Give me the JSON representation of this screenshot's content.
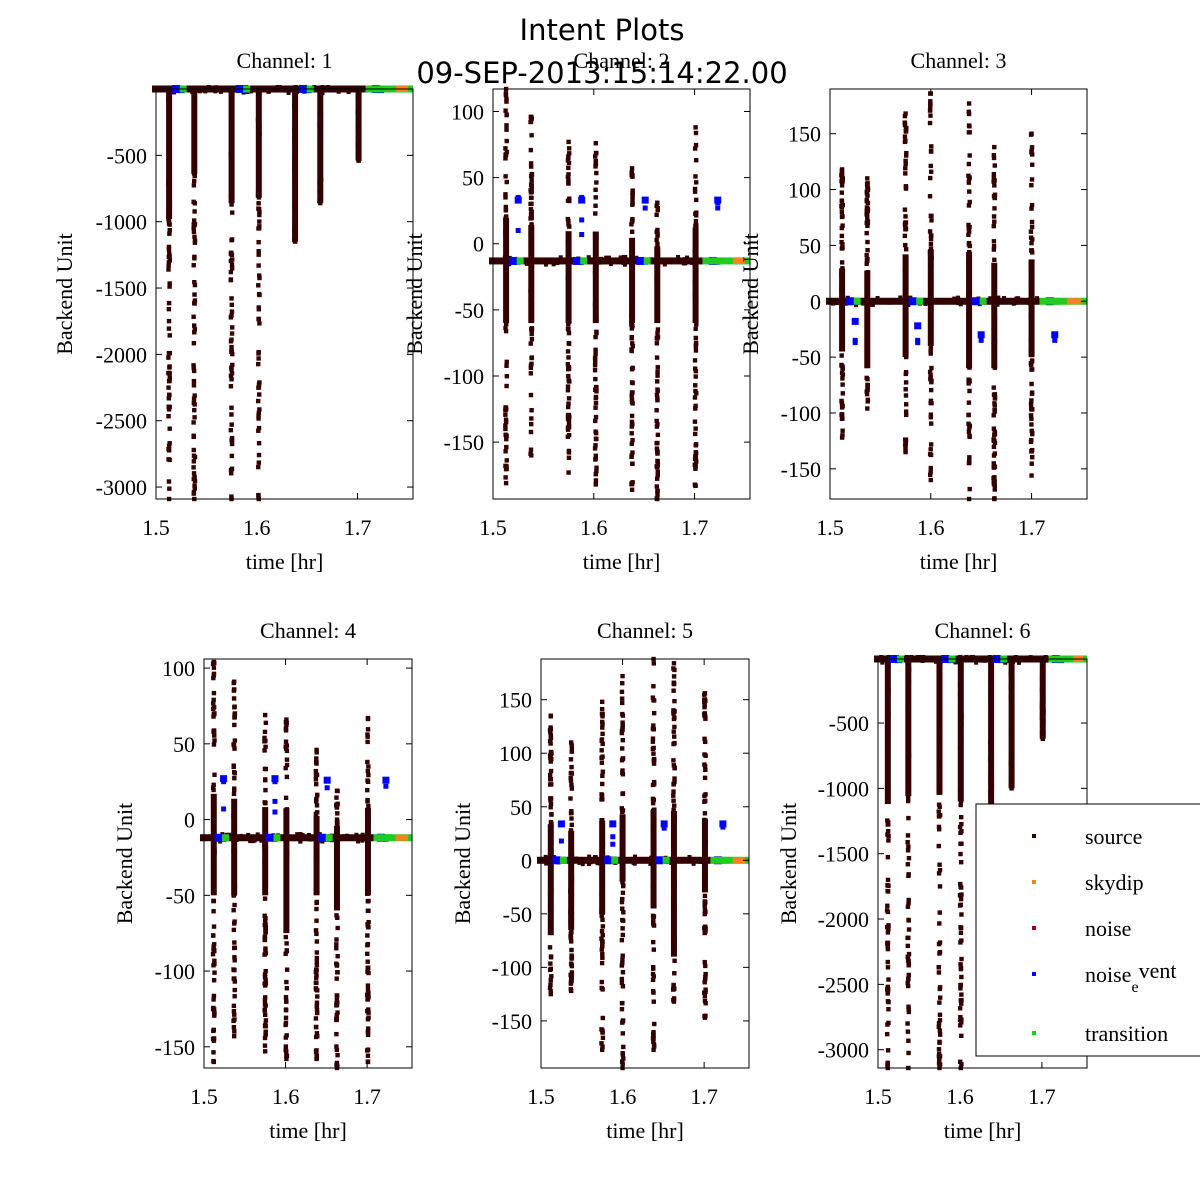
{
  "figure": {
    "title": "Intent Plots",
    "subtitle": "09-SEP-2013:15:14:22.00"
  },
  "legend": {
    "placement": "lower-right of Channel 6",
    "entries": [
      {
        "name": "source",
        "color": "#330000"
      },
      {
        "name": "skydip",
        "color": "#ff8020"
      },
      {
        "name": "noise",
        "color": "#990020"
      },
      {
        "name": "noise_event",
        "label_main": "noise",
        "label_sub": "e",
        "label_tail": "vent",
        "color": "#0000ff"
      },
      {
        "name": "transition",
        "color": "#20cc20"
      }
    ]
  },
  "chart_data": [
    {
      "type": "scatter",
      "title": "Channel: 1",
      "xlabel": "time [hr]",
      "ylabel": "Backend Unit",
      "xlim": [
        1.5,
        1.755
      ],
      "ylim": [
        -3090,
        0
      ],
      "xticks": [
        1.5,
        1.6,
        1.7
      ],
      "yticks": [
        -500,
        -1000,
        -1500,
        -2000,
        -2500,
        -3000
      ],
      "baseline": 0,
      "source_bursts": [
        {
          "t": 1.513,
          "min": -3090,
          "max": 0,
          "dense_to": -980
        },
        {
          "t": 1.538,
          "min": -3090,
          "max": 0,
          "dense_to": -640
        },
        {
          "t": 1.575,
          "min": -3090,
          "max": 0,
          "dense_to": -860
        },
        {
          "t": 1.602,
          "min": -3090,
          "max": 0,
          "dense_to": -820
        },
        {
          "t": 1.638,
          "min": -1150,
          "max": 0,
          "dense_to": -1150
        },
        {
          "t": 1.663,
          "min": -860,
          "max": 0,
          "dense_to": -860
        },
        {
          "t": 1.701,
          "min": -540,
          "max": 0,
          "dense_to": -540
        }
      ],
      "noise_event_clusters": [
        {
          "t": 1.525,
          "values": [
            -5
          ]
        },
        {
          "t": 1.588,
          "values": [
            -5
          ]
        },
        {
          "t": 1.651,
          "values": [
            -5
          ]
        },
        {
          "t": 1.723,
          "values": [
            -5
          ]
        }
      ],
      "transition_range": [
        1.708,
        1.755
      ],
      "skydip_range": [
        1.738,
        1.75
      ]
    },
    {
      "type": "scatter",
      "title": "Channel: 2",
      "xlabel": "time [hr]",
      "ylabel": "Backend Unit",
      "xlim": [
        1.5,
        1.755
      ],
      "ylim": [
        -193,
        117
      ],
      "xticks": [
        1.5,
        1.6,
        1.7
      ],
      "yticks": [
        100,
        50,
        0,
        -50,
        -100,
        -150
      ],
      "baseline": -13,
      "source_bursts": [
        {
          "t": 1.513,
          "min": -181,
          "max": 117,
          "dense_to": -60
        },
        {
          "t": 1.538,
          "min": -160,
          "max": 96,
          "dense_to": -60
        },
        {
          "t": 1.575,
          "min": -173,
          "max": 77,
          "dense_to": -60
        },
        {
          "t": 1.602,
          "min": -182,
          "max": 76,
          "dense_to": -60
        },
        {
          "t": 1.638,
          "min": -186,
          "max": 57,
          "dense_to": -60
        },
        {
          "t": 1.663,
          "min": -193,
          "max": 31,
          "dense_to": -60
        },
        {
          "t": 1.701,
          "min": -183,
          "max": 88,
          "dense_to": -60
        }
      ],
      "noise_event_clusters": [
        {
          "t": 1.525,
          "values": [
            33,
            35,
            10,
            -14
          ]
        },
        {
          "t": 1.588,
          "values": [
            33,
            35,
            18,
            7,
            -14
          ]
        },
        {
          "t": 1.651,
          "values": [
            33,
            27,
            -14
          ]
        },
        {
          "t": 1.723,
          "values": [
            33,
            31,
            27,
            -14
          ]
        }
      ],
      "transition_range": [
        1.708,
        1.755
      ],
      "skydip_range": [
        1.738,
        1.75
      ]
    },
    {
      "type": "scatter",
      "title": "Channel: 3",
      "xlabel": "time [hr]",
      "ylabel": "Backend Unit",
      "xlim": [
        1.5,
        1.755
      ],
      "ylim": [
        -177,
        190
      ],
      "xticks": [
        1.5,
        1.6,
        1.7
      ],
      "yticks": [
        150,
        100,
        50,
        0,
        -50,
        -100,
        -150
      ],
      "baseline": 0,
      "source_bursts": [
        {
          "t": 1.512,
          "min": -122,
          "max": 118,
          "dense_to": -45
        },
        {
          "t": 1.537,
          "min": -96,
          "max": 110,
          "dense_to": -60
        },
        {
          "t": 1.575,
          "min": -135,
          "max": 168,
          "dense_to": -50
        },
        {
          "t": 1.6,
          "min": -160,
          "max": 186,
          "dense_to": -40
        },
        {
          "t": 1.638,
          "min": -177,
          "max": 177,
          "dense_to": -60
        },
        {
          "t": 1.663,
          "min": -177,
          "max": 138,
          "dense_to": -60
        },
        {
          "t": 1.7,
          "min": -156,
          "max": 150,
          "dense_to": -50
        }
      ],
      "noise_event_clusters": [
        {
          "t": 1.525,
          "values": [
            -18,
            -35,
            -37,
            0
          ]
        },
        {
          "t": 1.587,
          "values": [
            -22,
            -35,
            -37,
            0
          ]
        },
        {
          "t": 1.65,
          "values": [
            -30,
            -35,
            0
          ]
        },
        {
          "t": 1.723,
          "values": [
            -30,
            -35,
            0
          ]
        }
      ],
      "transition_range": [
        1.708,
        1.755
      ],
      "skydip_range": [
        1.735,
        1.75
      ]
    },
    {
      "type": "scatter",
      "title": "Channel: 4",
      "xlabel": "time [hr]",
      "ylabel": "Backend Unit",
      "xlim": [
        1.5,
        1.755
      ],
      "ylim": [
        -164,
        106
      ],
      "xticks": [
        1.5,
        1.6,
        1.7
      ],
      "yticks": [
        100,
        50,
        0,
        -50,
        -100,
        -150
      ],
      "baseline": -12,
      "source_bursts": [
        {
          "t": 1.512,
          "min": -160,
          "max": 104,
          "dense_to": -50
        },
        {
          "t": 1.537,
          "min": -143,
          "max": 91,
          "dense_to": -50
        },
        {
          "t": 1.575,
          "min": -153,
          "max": 69,
          "dense_to": -50
        },
        {
          "t": 1.601,
          "min": -158,
          "max": 66,
          "dense_to": -75
        },
        {
          "t": 1.638,
          "min": -158,
          "max": 46,
          "dense_to": -50
        },
        {
          "t": 1.663,
          "min": -164,
          "max": 19,
          "dense_to": -60
        },
        {
          "t": 1.701,
          "min": -160,
          "max": 67,
          "dense_to": -50
        }
      ],
      "noise_event_clusters": [
        {
          "t": 1.524,
          "values": [
            27,
            25,
            7,
            -13
          ]
        },
        {
          "t": 1.587,
          "values": [
            27,
            25,
            12,
            5,
            -13
          ]
        },
        {
          "t": 1.651,
          "values": [
            26,
            21,
            -13
          ]
        },
        {
          "t": 1.723,
          "values": [
            26,
            22,
            -13
          ]
        }
      ],
      "transition_range": [
        1.708,
        1.755
      ],
      "skydip_range": [
        1.735,
        1.75
      ]
    },
    {
      "type": "scatter",
      "title": "Channel: 5",
      "xlabel": "time [hr]",
      "ylabel": "Backend Unit",
      "xlim": [
        1.5,
        1.755
      ],
      "ylim": [
        -194,
        188
      ],
      "xticks": [
        1.5,
        1.6,
        1.7
      ],
      "yticks": [
        150,
        100,
        50,
        0,
        -50,
        -100,
        -150
      ],
      "baseline": 0,
      "source_bursts": [
        {
          "t": 1.512,
          "min": -125,
          "max": 135,
          "dense_to": -70
        },
        {
          "t": 1.537,
          "min": -122,
          "max": 110,
          "dense_to": -65
        },
        {
          "t": 1.575,
          "min": -177,
          "max": 148,
          "dense_to": -50
        },
        {
          "t": 1.6,
          "min": -194,
          "max": 172,
          "dense_to": -20
        },
        {
          "t": 1.638,
          "min": -177,
          "max": 188,
          "dense_to": -45
        },
        {
          "t": 1.663,
          "min": -132,
          "max": 184,
          "dense_to": -90
        },
        {
          "t": 1.701,
          "min": -147,
          "max": 156,
          "dense_to": -30
        }
      ],
      "noise_event_clusters": [
        {
          "t": 1.525,
          "values": [
            34,
            18,
            0
          ]
        },
        {
          "t": 1.588,
          "values": [
            34,
            22,
            15,
            0
          ]
        },
        {
          "t": 1.651,
          "values": [
            34,
            30,
            0
          ]
        },
        {
          "t": 1.723,
          "values": [
            34,
            31,
            0
          ]
        }
      ],
      "transition_range": [
        1.708,
        1.755
      ],
      "skydip_range": [
        1.735,
        1.75
      ]
    },
    {
      "type": "scatter",
      "title": "Channel: 6",
      "xlabel": "time [hr]",
      "ylabel": "Backend Unit",
      "xlim": [
        1.5,
        1.755
      ],
      "ylim": [
        -3140,
        -10
      ],
      "xticks": [
        1.5,
        1.6,
        1.7
      ],
      "yticks": [
        -500,
        -1000,
        -1500,
        -2000,
        -2500,
        -3000
      ],
      "baseline": -10,
      "source_bursts": [
        {
          "t": 1.512,
          "min": -3140,
          "max": -10,
          "dense_to": -1120
        },
        {
          "t": 1.537,
          "min": -3140,
          "max": -10,
          "dense_to": -1060
        },
        {
          "t": 1.575,
          "min": -3140,
          "max": -10,
          "dense_to": -1050
        },
        {
          "t": 1.601,
          "min": -3140,
          "max": -10,
          "dense_to": -1100
        },
        {
          "t": 1.638,
          "min": -1500,
          "max": -10,
          "dense_to": -1500
        },
        {
          "t": 1.663,
          "min": -1000,
          "max": -10,
          "dense_to": -1000
        },
        {
          "t": 1.701,
          "min": -620,
          "max": -10,
          "dense_to": -620
        }
      ],
      "noise_event_clusters": [
        {
          "t": 1.525,
          "values": [
            -15
          ]
        },
        {
          "t": 1.588,
          "values": [
            -15
          ]
        },
        {
          "t": 1.651,
          "values": [
            -15
          ]
        },
        {
          "t": 1.723,
          "values": [
            -15
          ]
        }
      ],
      "transition_range": [
        1.708,
        1.755
      ],
      "skydip_range": [
        1.738,
        1.75
      ]
    }
  ]
}
